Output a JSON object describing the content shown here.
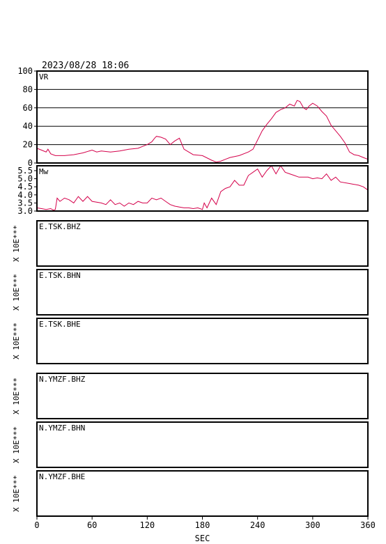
{
  "datetime": "2023/08/28 18:06",
  "colors": {
    "trace": "#d4004a",
    "frame": "#000000",
    "grid": "#000000"
  },
  "chart_data": [
    {
      "type": "line",
      "label": "VR",
      "ylim": [
        0,
        100
      ],
      "yticks": [
        "0",
        "20",
        "40",
        "60",
        "80",
        "100"
      ],
      "grid": true,
      "xlim": [
        0,
        360
      ],
      "x": [
        0,
        5,
        10,
        12,
        15,
        20,
        30,
        40,
        50,
        60,
        65,
        70,
        80,
        90,
        100,
        110,
        115,
        120,
        125,
        128,
        130,
        135,
        140,
        145,
        150,
        155,
        160,
        170,
        180,
        190,
        195,
        200,
        205,
        210,
        220,
        230,
        235,
        240,
        245,
        250,
        255,
        260,
        265,
        270,
        275,
        280,
        283,
        286,
        290,
        293,
        296,
        300,
        305,
        310,
        315,
        320,
        330,
        335,
        340,
        345,
        350,
        355,
        360
      ],
      "y": [
        16,
        14,
        12,
        15,
        10,
        8,
        8,
        9,
        11,
        14,
        12,
        13,
        12,
        13,
        15,
        16,
        18,
        20,
        23,
        27,
        29,
        28,
        26,
        20,
        24,
        27,
        15,
        9,
        8,
        3,
        1,
        2,
        4,
        6,
        8,
        12,
        15,
        25,
        35,
        42,
        48,
        55,
        58,
        60,
        64,
        62,
        68,
        67,
        60,
        58,
        62,
        65,
        62,
        56,
        51,
        41,
        29,
        22,
        12,
        9,
        8,
        6,
        4
      ]
    },
    {
      "type": "line",
      "label": "Mw",
      "ylim": [
        3.0,
        5.8
      ],
      "yticks": [
        "3.0",
        "3.5",
        "4.0",
        "4.5",
        "5.0",
        "5.5"
      ],
      "grid": false,
      "xlim": [
        0,
        360
      ],
      "x": [
        0,
        5,
        10,
        15,
        18,
        20,
        22,
        25,
        30,
        35,
        40,
        45,
        50,
        55,
        60,
        70,
        75,
        80,
        85,
        90,
        95,
        100,
        105,
        110,
        115,
        120,
        125,
        130,
        135,
        140,
        145,
        150,
        155,
        160,
        165,
        170,
        175,
        180,
        182,
        185,
        190,
        195,
        200,
        205,
        210,
        215,
        220,
        225,
        230,
        235,
        240,
        245,
        250,
        255,
        260,
        265,
        270,
        275,
        280,
        285,
        290,
        295,
        300,
        305,
        310,
        315,
        320,
        325,
        330,
        340,
        350,
        355,
        360
      ],
      "y": [
        3.2,
        3.15,
        3.1,
        3.15,
        3.05,
        3.1,
        3.8,
        3.6,
        3.8,
        3.7,
        3.5,
        3.9,
        3.6,
        3.9,
        3.6,
        3.5,
        3.4,
        3.7,
        3.4,
        3.5,
        3.3,
        3.5,
        3.4,
        3.6,
        3.5,
        3.5,
        3.8,
        3.7,
        3.8,
        3.6,
        3.4,
        3.3,
        3.25,
        3.2,
        3.2,
        3.15,
        3.2,
        3.1,
        3.5,
        3.2,
        3.8,
        3.4,
        4.2,
        4.4,
        4.5,
        4.9,
        4.6,
        4.6,
        5.2,
        5.4,
        5.6,
        5.1,
        5.5,
        5.8,
        5.3,
        5.8,
        5.4,
        5.3,
        5.2,
        5.1,
        5.1,
        5.1,
        5.0,
        5.05,
        5.0,
        5.3,
        4.9,
        5.1,
        4.8,
        4.7,
        4.6,
        4.5,
        4.3
      ]
    }
  ],
  "y_unit_label": "X 10E***",
  "channels": [
    "E.TSK.BHZ",
    "E.TSK.BHN",
    "E.TSK.BHE",
    "N.YMZF.BHZ",
    "N.YMZF.BHN",
    "N.YMZF.BHE"
  ],
  "x_axis": {
    "label": "SEC",
    "ticks": [
      "0",
      "60",
      "120",
      "180",
      "240",
      "300",
      "360"
    ],
    "range": [
      0,
      360
    ]
  }
}
